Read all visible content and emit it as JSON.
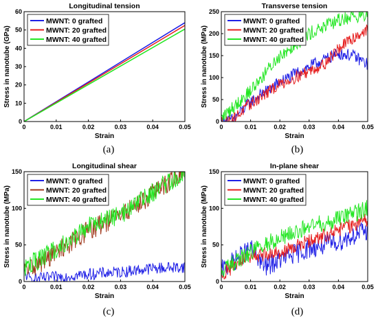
{
  "colors": {
    "s0": "#1f1fe6",
    "s20": "#e61f1f",
    "s40": "#22e622",
    "s20_shear": "#a0381c"
  },
  "chart_data": [
    {
      "type": "line",
      "title": "Longitudinal tension",
      "xlabel": "Strain",
      "ylabel": "Stress in nanotube (GPa)",
      "caption": "(a)",
      "xlim": [
        0,
        0.05
      ],
      "ylim": [
        0,
        60
      ],
      "xticks": [
        "0",
        "0.01",
        "0.02",
        "0.03",
        "0.04",
        "0.05"
      ],
      "yticks": [
        "0",
        "10",
        "20",
        "30",
        "40",
        "50",
        "60"
      ],
      "legend_position": "top-left",
      "series": [
        {
          "name": "MWNT: 0 grafted",
          "color": "#1f1fe6",
          "x": [
            0,
            0.05
          ],
          "values": [
            0,
            54
          ],
          "noise": 0
        },
        {
          "name": "MWNT: 20 grafted",
          "color": "#e61f1f",
          "x": [
            0,
            0.05
          ],
          "values": [
            0,
            52.5
          ],
          "noise": 0
        },
        {
          "name": "MWNT: 40 grafted",
          "color": "#22e622",
          "x": [
            0,
            0.05
          ],
          "values": [
            0,
            50.5
          ],
          "noise": 0
        }
      ]
    },
    {
      "type": "line",
      "title": "Transverse tension",
      "xlabel": "Strain",
      "ylabel": "Stress in nanotube (MPa)",
      "caption": "(b)",
      "xlim": [
        0,
        0.05
      ],
      "ylim": [
        0,
        250
      ],
      "xticks": [
        "0",
        "0.01",
        "0.02",
        "0.03",
        "0.04",
        "0.05"
      ],
      "yticks": [
        "0",
        "50",
        "100",
        "150",
        "200",
        "250"
      ],
      "legend_position": "top-left",
      "series": [
        {
          "name": "MWNT: 0 grafted",
          "color": "#1f1fe6",
          "x": [
            0,
            0.004,
            0.01,
            0.02,
            0.03,
            0.035,
            0.04,
            0.045,
            0.05
          ],
          "values": [
            0,
            5,
            45,
            90,
            125,
            140,
            155,
            150,
            130
          ],
          "noise": 14
        },
        {
          "name": "MWNT: 20 grafted",
          "color": "#e61f1f",
          "x": [
            0,
            0.004,
            0.01,
            0.02,
            0.03,
            0.035,
            0.04,
            0.045,
            0.05
          ],
          "values": [
            0,
            5,
            40,
            85,
            115,
            130,
            165,
            190,
            210
          ],
          "noise": 14
        },
        {
          "name": "MWNT: 40 grafted",
          "color": "#22e622",
          "x": [
            0,
            0.002,
            0.01,
            0.02,
            0.03,
            0.035,
            0.04,
            0.045,
            0.05
          ],
          "values": [
            8,
            20,
            70,
            150,
            200,
            215,
            230,
            240,
            240
          ],
          "noise": 16
        }
      ]
    },
    {
      "type": "line",
      "title": "Longitudinal shear",
      "xlabel": "Strain",
      "ylabel": "Stress in nanotube (MPa)",
      "caption": "(c)",
      "xlim": [
        0,
        0.05
      ],
      "ylim": [
        0,
        150
      ],
      "xticks": [
        "0",
        "0.01",
        "0.02",
        "0.03",
        "0.04",
        "0.05"
      ],
      "yticks": [
        "0",
        "50",
        "100",
        "150"
      ],
      "legend_position": "top-left",
      "series": [
        {
          "name": "MWNT: 0 grafted",
          "color": "#1f1fe6",
          "x": [
            0,
            0.002,
            0.01,
            0.02,
            0.03,
            0.04,
            0.05
          ],
          "values": [
            12,
            3,
            6,
            10,
            13,
            18,
            20
          ],
          "noise": 8
        },
        {
          "name": "MWNT: 20 grafted",
          "color": "#a0381c",
          "x": [
            0,
            0.005,
            0.01,
            0.02,
            0.03,
            0.04,
            0.05
          ],
          "values": [
            15,
            25,
            40,
            70,
            90,
            120,
            150
          ],
          "noise": 14
        },
        {
          "name": "MWNT: 40 grafted",
          "color": "#22e622",
          "x": [
            0,
            0.005,
            0.01,
            0.02,
            0.03,
            0.04,
            0.05
          ],
          "values": [
            20,
            30,
            45,
            75,
            92,
            122,
            150
          ],
          "noise": 14
        }
      ]
    },
    {
      "type": "line",
      "title": "In-plane shear",
      "xlabel": "Strain",
      "ylabel": "Stress in nanotube (MPa)",
      "caption": "(d)",
      "xlim": [
        0,
        0.05
      ],
      "ylim": [
        0,
        150
      ],
      "xticks": [
        "0",
        "0.01",
        "0.02",
        "0.03",
        "0.04",
        "0.05"
      ],
      "yticks": [
        "0",
        "50",
        "100",
        "150"
      ],
      "legend_position": "top-left",
      "series": [
        {
          "name": "MWNT: 0 grafted",
          "color": "#1f1fe6",
          "x": [
            0,
            0.01,
            0.015,
            0.02,
            0.03,
            0.04,
            0.05
          ],
          "values": [
            15,
            45,
            20,
            30,
            45,
            55,
            70
          ],
          "noise": 14
        },
        {
          "name": "MWNT: 20 grafted",
          "color": "#e61f1f",
          "x": [
            0,
            0.01,
            0.02,
            0.03,
            0.04,
            0.05
          ],
          "values": [
            10,
            35,
            40,
            55,
            70,
            85
          ],
          "noise": 10
        },
        {
          "name": "MWNT: 40 grafted",
          "color": "#22e622",
          "x": [
            0,
            0.01,
            0.02,
            0.03,
            0.04,
            0.05
          ],
          "values": [
            15,
            40,
            60,
            75,
            85,
            100
          ],
          "noise": 12
        }
      ]
    }
  ]
}
